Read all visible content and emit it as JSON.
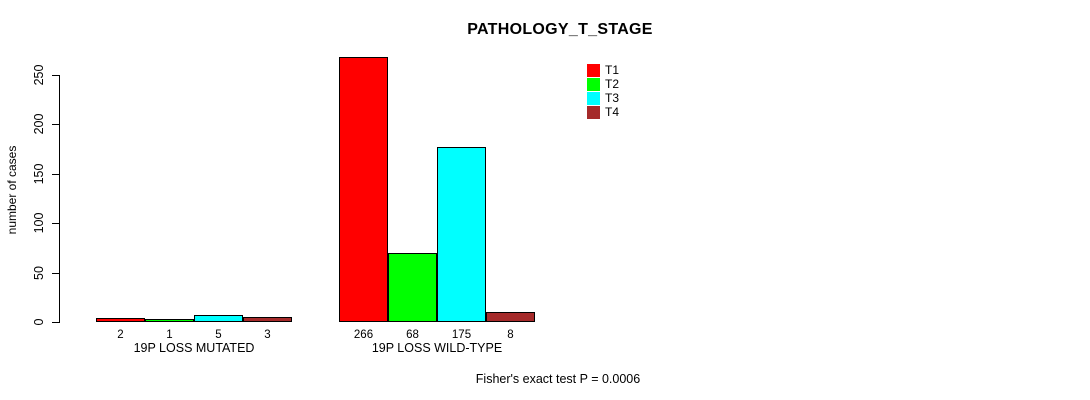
{
  "title": "PATHOLOGY_T_STAGE",
  "footnote": "Fisher's exact test P = 0.0006",
  "chart_data": {
    "type": "bar",
    "title": "PATHOLOGY_T_STAGE",
    "xlabel": "",
    "ylabel": "number of cases",
    "ylim": [
      0,
      250
    ],
    "yticks": [
      0,
      50,
      100,
      150,
      200,
      250
    ],
    "grid": false,
    "legend_position": "top-right",
    "categories": [
      "19P LOSS MUTATED",
      "19P LOSS WILD-TYPE"
    ],
    "series": [
      {
        "name": "T1",
        "color": "#ff0000",
        "values": [
          2,
          266
        ]
      },
      {
        "name": "T2",
        "color": "#00ff00",
        "values": [
          1,
          68
        ]
      },
      {
        "name": "T3",
        "color": "#00ffff",
        "values": [
          5,
          175
        ]
      },
      {
        "name": "T4",
        "color": "#a52a2a",
        "values": [
          3,
          8
        ]
      }
    ],
    "bar_labels": [
      [
        "2",
        "1",
        "5",
        "3"
      ],
      [
        "266",
        "68",
        "175",
        "8"
      ]
    ],
    "annotation": "Fisher's exact test P = 0.0006",
    "bar_border_color": "#000000",
    "axis_color": "#000000"
  }
}
